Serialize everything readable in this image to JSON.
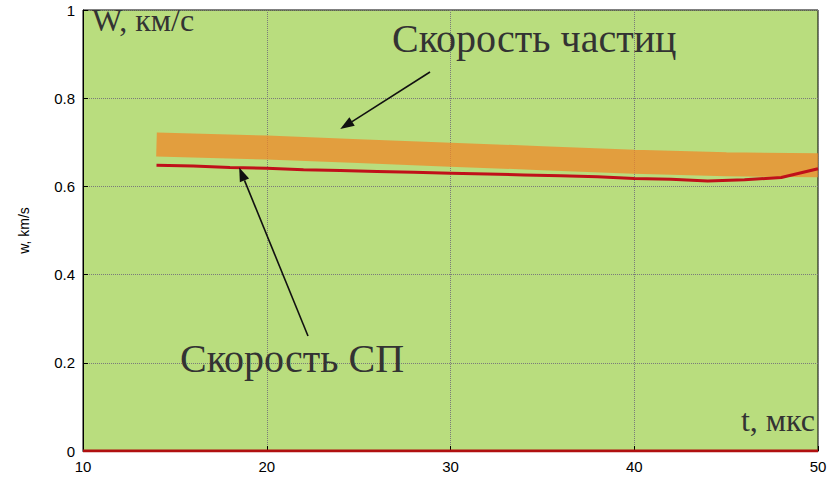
{
  "chart_data": {
    "type": "line",
    "ylabel_top": "W, км/с",
    "ylabel": "w, km/s",
    "xlabel": "t, мкс",
    "xlim": [
      10,
      50
    ],
    "xticks": [
      10,
      20,
      30,
      40,
      50
    ],
    "ylim": [
      0,
      1
    ],
    "yticks": [
      0,
      0.2,
      0.4,
      0.6,
      0.8,
      1
    ],
    "grid": true,
    "series": [
      {
        "name": "Скорость частиц",
        "color": "#f0882a",
        "line_style": "wide",
        "marker": "none",
        "x": [
          14,
          20,
          25,
          30,
          35,
          40,
          45,
          50
        ],
        "values": [
          0.695,
          0.688,
          0.68,
          0.672,
          0.664,
          0.656,
          0.65,
          0.648
        ]
      },
      {
        "name": "Скорость СП",
        "color": "#c0101a",
        "line_style": "solid",
        "marker": "none",
        "x": [
          14,
          16,
          18,
          20,
          22,
          24,
          26,
          28,
          30,
          32,
          34,
          36,
          38,
          40,
          42,
          44,
          46,
          48,
          50
        ],
        "values": [
          0.648,
          0.646,
          0.643,
          0.641,
          0.638,
          0.636,
          0.634,
          0.632,
          0.63,
          0.628,
          0.626,
          0.624,
          0.622,
          0.618,
          0.616,
          0.612,
          0.615,
          0.62,
          0.64
        ]
      },
      {
        "color": "#b01010",
        "line_style": "solid",
        "marker": "none",
        "x": [
          10,
          50
        ],
        "values": [
          0,
          0
        ]
      }
    ],
    "annotations": [
      {
        "text": "Скорость частиц",
        "arrow_to": [
          24,
          0.73
        ]
      },
      {
        "text": "Скорость СП",
        "arrow_to": [
          18.5,
          0.643
        ]
      }
    ]
  }
}
